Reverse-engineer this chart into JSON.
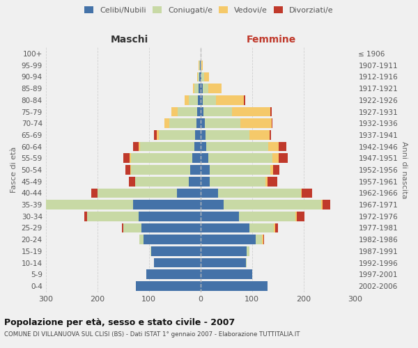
{
  "age_groups": [
    "0-4",
    "5-9",
    "10-14",
    "15-19",
    "20-24",
    "25-29",
    "30-34",
    "35-39",
    "40-44",
    "45-49",
    "50-54",
    "55-59",
    "60-64",
    "65-69",
    "70-74",
    "75-79",
    "80-84",
    "85-89",
    "90-94",
    "95-99",
    "100+"
  ],
  "birth_years": [
    "2002-2006",
    "1997-2001",
    "1992-1996",
    "1987-1991",
    "1982-1986",
    "1977-1981",
    "1972-1976",
    "1967-1971",
    "1962-1966",
    "1957-1961",
    "1952-1956",
    "1947-1951",
    "1942-1946",
    "1937-1941",
    "1932-1936",
    "1927-1931",
    "1922-1926",
    "1917-1921",
    "1912-1916",
    "1907-1911",
    "≤ 1906"
  ],
  "males": {
    "celibi": [
      125,
      105,
      90,
      95,
      110,
      115,
      120,
      130,
      45,
      22,
      20,
      15,
      12,
      10,
      8,
      6,
      5,
      3,
      2,
      1,
      0
    ],
    "coniugati": [
      0,
      0,
      0,
      2,
      8,
      35,
      100,
      185,
      155,
      105,
      115,
      120,
      105,
      70,
      52,
      38,
      18,
      8,
      3,
      1,
      0
    ],
    "vedovi": [
      0,
      0,
      0,
      0,
      0,
      0,
      0,
      0,
      0,
      0,
      1,
      2,
      3,
      5,
      10,
      12,
      8,
      3,
      1,
      1,
      0
    ],
    "divorziati": [
      0,
      0,
      0,
      0,
      1,
      2,
      5,
      12,
      12,
      12,
      10,
      12,
      10,
      5,
      0,
      0,
      0,
      0,
      0,
      0,
      0
    ]
  },
  "females": {
    "nubili": [
      130,
      100,
      88,
      90,
      108,
      95,
      75,
      45,
      35,
      18,
      18,
      15,
      12,
      10,
      8,
      6,
      5,
      4,
      2,
      1,
      0
    ],
    "coniugate": [
      0,
      0,
      2,
      5,
      12,
      48,
      110,
      190,
      160,
      108,
      118,
      125,
      120,
      85,
      70,
      55,
      25,
      12,
      5,
      1,
      0
    ],
    "vedove": [
      0,
      0,
      0,
      0,
      2,
      2,
      2,
      2,
      2,
      5,
      5,
      12,
      20,
      40,
      60,
      75,
      55,
      25,
      10,
      2,
      0
    ],
    "divorziate": [
      0,
      0,
      0,
      0,
      2,
      5,
      15,
      15,
      20,
      18,
      12,
      18,
      15,
      2,
      2,
      2,
      2,
      0,
      0,
      0,
      0
    ]
  },
  "colors": {
    "celibi": "#4472a8",
    "coniugati": "#c8d9a5",
    "vedovi": "#f5c96a",
    "divorziati": "#c0392b"
  },
  "xlim": 300,
  "title": "Popolazione per età, sesso e stato civile - 2007",
  "subtitle": "COMUNE DI VILLANUOVA SUL CLISI (BS) - Dati ISTAT 1° gennaio 2007 - Elaborazione TUTTITALIA.IT",
  "ylabel": "Fasce di età",
  "ylabel_right": "Anni di nascita",
  "xlabel_left": "Maschi",
  "xlabel_right": "Femmine",
  "bg_color": "#f0f0f0",
  "grid_color": "#d0d0d0"
}
